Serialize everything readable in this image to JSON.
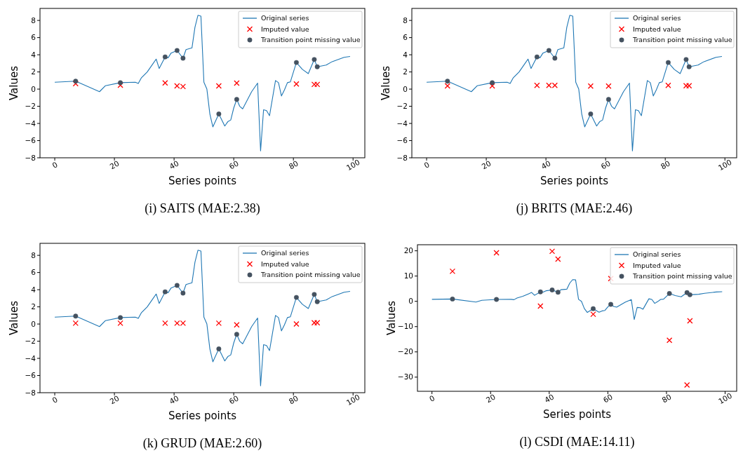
{
  "chart_data": [
    {
      "type": "line",
      "title": "(i) SAITS (MAE:2.38)",
      "xlabel": "Series points",
      "ylabel": "Values",
      "xlim": [
        -4.95,
        103.95
      ],
      "xticks": [
        0,
        20,
        40,
        60,
        80,
        100
      ],
      "ylim": [
        -8.0,
        9.4
      ],
      "yticks": [
        -8,
        -6,
        -4,
        -2,
        0,
        2,
        4,
        6,
        8
      ],
      "legend": "top right",
      "grid": false,
      "series": [
        {
          "name": "Original series",
          "type": "line",
          "color": "#1f77b4",
          "marker": "none",
          "x": [
            0,
            7,
            15,
            17,
            22,
            27,
            28,
            29,
            31,
            33,
            34,
            35,
            37,
            38,
            39,
            41,
            43,
            44,
            46,
            47,
            48,
            49,
            50,
            51,
            52,
            53,
            55,
            57,
            58,
            59,
            60,
            61,
            62,
            63,
            66,
            68,
            69,
            70,
            71,
            72,
            74,
            75,
            76,
            77,
            78,
            79,
            81,
            83,
            85,
            87,
            88,
            91,
            93,
            97,
            99
          ],
          "values": [
            0.8,
            0.92,
            -0.3,
            0.4,
            0.75,
            0.8,
            0.65,
            1.3,
            2.0,
            3.0,
            3.5,
            2.4,
            3.75,
            3.65,
            4.2,
            4.5,
            3.6,
            4.6,
            4.8,
            7.2,
            8.6,
            8.5,
            0.8,
            0.0,
            -2.9,
            -4.4,
            -2.9,
            -4.3,
            -3.8,
            -3.6,
            -2.2,
            -1.2,
            -2.0,
            -2.3,
            -0.3,
            0.7,
            -7.2,
            -2.4,
            -2.5,
            -3.1,
            1.0,
            0.75,
            -0.8,
            -0.1,
            0.75,
            0.85,
            3.1,
            2.3,
            1.8,
            3.45,
            2.6,
            2.8,
            3.2,
            3.7,
            3.8
          ]
        },
        {
          "name": "Imputed value",
          "type": "scatter",
          "color": "#ff0000",
          "marker": "cross",
          "x": [
            7,
            22,
            37,
            41,
            43,
            55,
            61,
            81,
            87,
            88
          ],
          "values": [
            0.64,
            0.45,
            0.72,
            0.37,
            0.3,
            0.37,
            0.7,
            0.6,
            0.55,
            0.55
          ]
        },
        {
          "name": "Transition point missing value",
          "type": "scatter",
          "color": "#455260",
          "marker": "circle",
          "x": [
            7,
            22,
            37,
            41,
            43,
            55,
            61,
            81,
            87,
            88
          ],
          "values": [
            0.92,
            0.75,
            3.75,
            4.5,
            3.6,
            -2.9,
            -1.2,
            3.1,
            3.45,
            2.6
          ]
        }
      ]
    },
    {
      "type": "line",
      "title": "(j) BRITS (MAE:2.46)",
      "xlabel": "Series points",
      "ylabel": "Values",
      "xlim": [
        -4.95,
        103.95
      ],
      "xticks": [
        0,
        20,
        40,
        60,
        80,
        100
      ],
      "ylim": [
        -8.0,
        9.4
      ],
      "yticks": [
        -8,
        -6,
        -4,
        -2,
        0,
        2,
        4,
        6,
        8
      ],
      "legend": "top right",
      "grid": false,
      "series": [
        {
          "name": "Original series",
          "type": "line",
          "color": "#1f77b4",
          "marker": "none",
          "x": [
            0,
            7,
            15,
            17,
            22,
            27,
            28,
            29,
            31,
            33,
            34,
            35,
            37,
            38,
            39,
            41,
            43,
            44,
            46,
            47,
            48,
            49,
            50,
            51,
            52,
            53,
            55,
            57,
            58,
            59,
            60,
            61,
            62,
            63,
            66,
            68,
            69,
            70,
            71,
            72,
            74,
            75,
            76,
            77,
            78,
            79,
            81,
            83,
            85,
            87,
            88,
            91,
            93,
            97,
            99
          ],
          "values": [
            0.8,
            0.92,
            -0.3,
            0.4,
            0.75,
            0.8,
            0.65,
            1.3,
            2.0,
            3.0,
            3.5,
            2.4,
            3.75,
            3.65,
            4.2,
            4.5,
            3.6,
            4.6,
            4.8,
            7.2,
            8.6,
            8.5,
            0.8,
            0.0,
            -2.9,
            -4.4,
            -2.9,
            -4.3,
            -3.8,
            -3.6,
            -2.2,
            -1.2,
            -2.0,
            -2.3,
            -0.3,
            0.7,
            -7.2,
            -2.4,
            -2.5,
            -3.1,
            1.0,
            0.75,
            -0.8,
            -0.1,
            0.75,
            0.85,
            3.1,
            2.3,
            1.8,
            3.45,
            2.6,
            2.8,
            3.2,
            3.7,
            3.8
          ]
        },
        {
          "name": "Imputed value",
          "type": "scatter",
          "color": "#ff0000",
          "marker": "cross",
          "x": [
            7,
            22,
            37,
            41,
            43,
            55,
            61,
            81,
            87,
            88
          ],
          "values": [
            0.37,
            0.37,
            0.43,
            0.43,
            0.43,
            0.35,
            0.35,
            0.43,
            0.4,
            0.4
          ]
        },
        {
          "name": "Transition point missing value",
          "type": "scatter",
          "color": "#455260",
          "marker": "circle",
          "x": [
            7,
            22,
            37,
            41,
            43,
            55,
            61,
            81,
            87,
            88
          ],
          "values": [
            0.92,
            0.75,
            3.75,
            4.5,
            3.6,
            -2.9,
            -1.2,
            3.1,
            3.45,
            2.6
          ]
        }
      ]
    },
    {
      "type": "line",
      "title": "(k) GRUD (MAE:2.60)",
      "xlabel": "Series points",
      "ylabel": "Values",
      "xlim": [
        -4.95,
        103.95
      ],
      "xticks": [
        0,
        20,
        40,
        60,
        80,
        100
      ],
      "ylim": [
        -8.0,
        9.4
      ],
      "yticks": [
        -8,
        -6,
        -4,
        -2,
        0,
        2,
        4,
        6,
        8
      ],
      "legend": "top right",
      "grid": false,
      "series": [
        {
          "name": "Original series",
          "type": "line",
          "color": "#1f77b4",
          "marker": "none",
          "x": [
            0,
            7,
            15,
            17,
            22,
            27,
            28,
            29,
            31,
            33,
            34,
            35,
            37,
            38,
            39,
            41,
            43,
            44,
            46,
            47,
            48,
            49,
            50,
            51,
            52,
            53,
            55,
            57,
            58,
            59,
            60,
            61,
            62,
            63,
            66,
            68,
            69,
            70,
            71,
            72,
            74,
            75,
            76,
            77,
            78,
            79,
            81,
            83,
            85,
            87,
            88,
            91,
            93,
            97,
            99
          ],
          "values": [
            0.8,
            0.92,
            -0.3,
            0.4,
            0.75,
            0.8,
            0.65,
            1.3,
            2.0,
            3.0,
            3.5,
            2.4,
            3.75,
            3.65,
            4.2,
            4.5,
            3.6,
            4.6,
            4.8,
            7.2,
            8.6,
            8.5,
            0.8,
            0.0,
            -2.9,
            -4.4,
            -2.9,
            -4.3,
            -3.8,
            -3.6,
            -2.2,
            -1.2,
            -2.0,
            -2.3,
            -0.3,
            0.7,
            -7.2,
            -2.4,
            -2.5,
            -3.1,
            1.0,
            0.75,
            -0.8,
            -0.1,
            0.75,
            0.85,
            3.1,
            2.3,
            1.8,
            3.45,
            2.6,
            2.8,
            3.2,
            3.7,
            3.8
          ]
        },
        {
          "name": "Imputed value",
          "type": "scatter",
          "color": "#ff0000",
          "marker": "cross",
          "x": [
            7,
            22,
            37,
            41,
            43,
            55,
            61,
            81,
            87,
            88
          ],
          "values": [
            0.1,
            0.1,
            0.1,
            0.1,
            0.1,
            0.1,
            -0.1,
            0.0,
            0.15,
            0.15
          ]
        },
        {
          "name": "Transition point missing value",
          "type": "scatter",
          "color": "#455260",
          "marker": "circle",
          "x": [
            7,
            22,
            37,
            41,
            43,
            55,
            61,
            81,
            87,
            88
          ],
          "values": [
            0.92,
            0.75,
            3.75,
            4.5,
            3.6,
            -2.9,
            -1.2,
            3.1,
            3.45,
            2.6
          ]
        }
      ]
    },
    {
      "type": "line",
      "title": "(l) CSDI (MAE:14.11)",
      "xlabel": "Series points",
      "ylabel": "Values",
      "xlim": [
        -4.95,
        103.95
      ],
      "xticks": [
        0,
        20,
        40,
        60,
        80,
        100
      ],
      "ylim": [
        -35.6,
        22.4
      ],
      "yticks": [
        -30,
        -20,
        -10,
        0,
        10,
        20
      ],
      "legend": "top right",
      "grid": false,
      "series": [
        {
          "name": "Original series",
          "type": "line",
          "color": "#1f77b4",
          "marker": "none",
          "x": [
            0,
            7,
            15,
            17,
            22,
            27,
            28,
            29,
            31,
            33,
            34,
            35,
            37,
            38,
            39,
            41,
            43,
            44,
            46,
            47,
            48,
            49,
            50,
            51,
            52,
            53,
            55,
            57,
            58,
            59,
            60,
            61,
            62,
            63,
            66,
            68,
            69,
            70,
            71,
            72,
            74,
            75,
            76,
            77,
            78,
            79,
            81,
            83,
            85,
            87,
            88,
            91,
            93,
            97,
            99
          ],
          "values": [
            0.8,
            0.92,
            -0.3,
            0.4,
            0.75,
            0.8,
            0.65,
            1.3,
            2.0,
            3.0,
            3.5,
            2.4,
            3.75,
            3.65,
            4.2,
            4.5,
            3.6,
            4.6,
            4.8,
            7.2,
            8.6,
            8.5,
            0.8,
            0.0,
            -2.9,
            -4.4,
            -2.9,
            -4.3,
            -3.8,
            -3.6,
            -2.2,
            -1.2,
            -2.0,
            -2.3,
            -0.3,
            0.7,
            -7.2,
            -2.4,
            -2.5,
            -3.1,
            1.0,
            0.75,
            -0.8,
            -0.1,
            0.75,
            0.85,
            3.1,
            2.3,
            1.8,
            3.45,
            2.6,
            2.8,
            3.2,
            3.7,
            3.8
          ]
        },
        {
          "name": "Imputed value",
          "type": "scatter",
          "color": "#ff0000",
          "marker": "cross",
          "x": [
            7,
            22,
            37,
            41,
            43,
            55,
            61,
            81,
            87,
            88
          ],
          "values": [
            11.9,
            19.2,
            -1.9,
            19.8,
            16.7,
            -5.1,
            9.0,
            -15.4,
            -33.1,
            -7.7
          ]
        },
        {
          "name": "Transition point missing value",
          "type": "scatter",
          "color": "#455260",
          "marker": "circle",
          "x": [
            7,
            22,
            37,
            41,
            43,
            55,
            61,
            81,
            87,
            88
          ],
          "values": [
            0.92,
            0.75,
            3.75,
            4.5,
            3.6,
            -2.9,
            -1.2,
            3.1,
            3.45,
            2.6
          ]
        }
      ]
    }
  ]
}
